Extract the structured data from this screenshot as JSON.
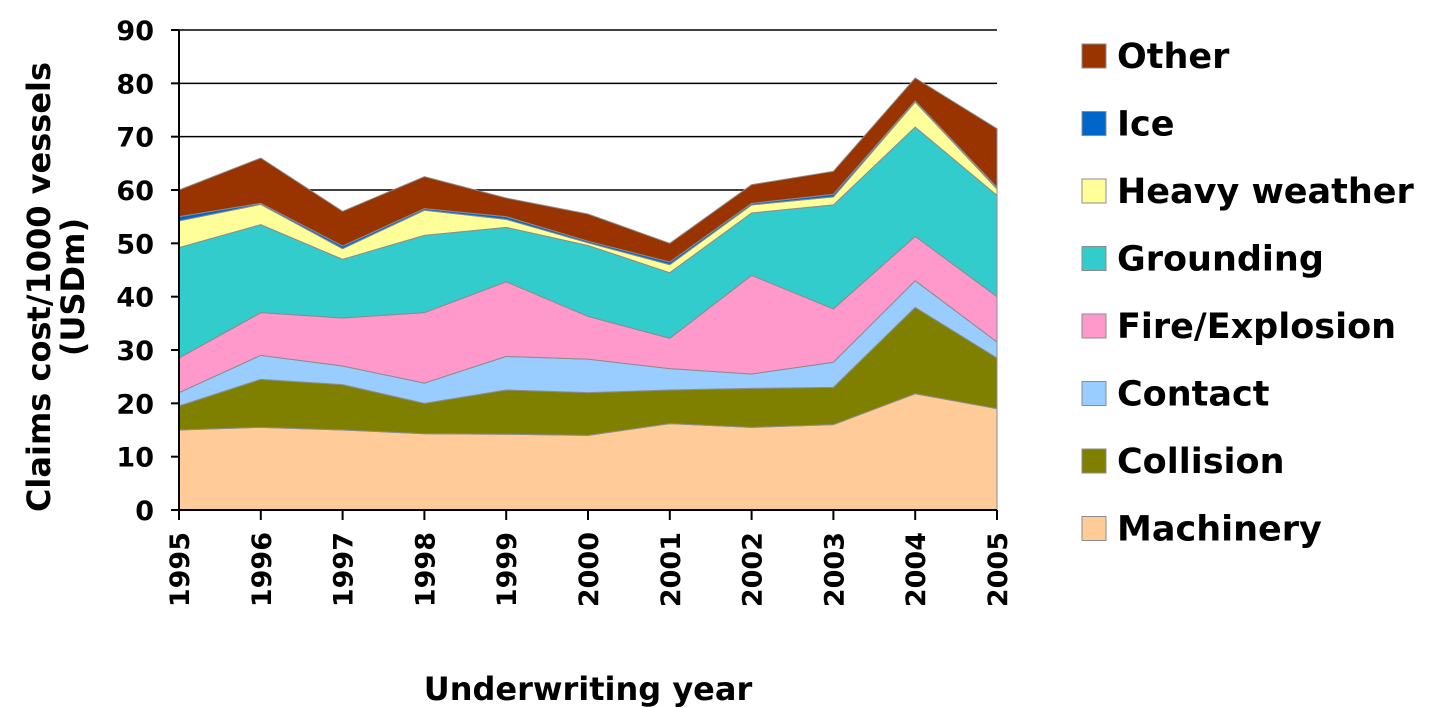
{
  "chart_data": {
    "type": "area",
    "stacked": true,
    "title": "",
    "xlabel": "Underwriting year",
    "ylabel_line1": "Claims cost/1000 vessels",
    "ylabel_line2": "(USDm)",
    "ylim": [
      0,
      90
    ],
    "yticks": [
      "0",
      "10",
      "20",
      "30",
      "40",
      "50",
      "60",
      "70",
      "80",
      "90"
    ],
    "grid": true,
    "legend_position": "right",
    "categories": [
      "1995",
      "1996",
      "1997",
      "1998",
      "1999",
      "2000",
      "2001",
      "2002",
      "2003",
      "2004",
      "2005"
    ],
    "series": [
      {
        "name": "Machinery",
        "color": "#ffcc99",
        "values": [
          15,
          15.5,
          15,
          14.3,
          14.2,
          14,
          16.2,
          15.5,
          16,
          21.8,
          19
        ]
      },
      {
        "name": "Collision",
        "color": "#808000",
        "values": [
          4.5,
          9,
          8.5,
          5.7,
          8.3,
          8,
          6.3,
          7.3,
          7,
          16.2,
          9.5
        ]
      },
      {
        "name": "Contact",
        "color": "#99ccff",
        "values": [
          2.5,
          4.5,
          3.5,
          3.8,
          6.3,
          6.3,
          4,
          2.7,
          4.7,
          5,
          3
        ]
      },
      {
        "name": "Fire/Explosion",
        "color": "#ff99cc",
        "values": [
          6.5,
          8,
          9,
          13.2,
          14,
          8,
          5.7,
          18.5,
          10,
          8.3,
          8.5
        ]
      },
      {
        "name": "Grounding",
        "color": "#33cccc",
        "values": [
          20.7,
          16.5,
          11,
          14.5,
          10.2,
          13.3,
          12.3,
          11.7,
          19.5,
          20.5,
          19
        ]
      },
      {
        "name": "Heavy weather",
        "color": "#ffff99",
        "values": [
          5,
          3.8,
          2,
          4.7,
          1.5,
          0.5,
          1.5,
          1.5,
          1.5,
          4.7,
          1.2
        ]
      },
      {
        "name": "Ice",
        "color": "#0066cc",
        "values": [
          0.8,
          0.2,
          0.5,
          0.3,
          0.5,
          0.3,
          0.5,
          0.3,
          0.5,
          0.2,
          0.3
        ]
      },
      {
        "name": "Other",
        "color": "#993300",
        "values": [
          5,
          8.5,
          6.5,
          6,
          3.5,
          5.1,
          3.5,
          3.5,
          4.3,
          4.3,
          11
        ]
      }
    ]
  }
}
